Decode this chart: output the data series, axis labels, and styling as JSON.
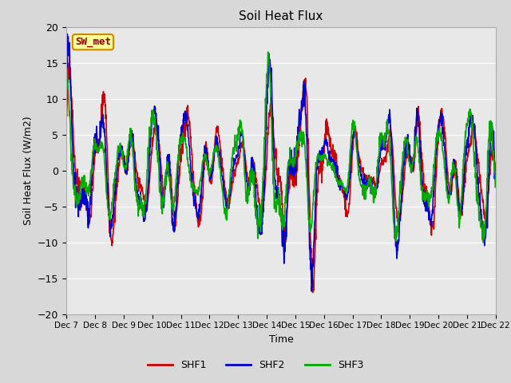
{
  "title": "Soil Heat Flux",
  "ylabel": "Soil Heat Flux (W/m2)",
  "xlabel": "Time",
  "annotation": "SW_met",
  "ylim": [
    -20,
    20
  ],
  "yticks": [
    -20,
    -15,
    -10,
    -5,
    0,
    5,
    10,
    15,
    20
  ],
  "xlabels": [
    "Dec 7",
    "Dec 8",
    "Dec 9",
    "Dec 10",
    "Dec 11",
    "Dec 12",
    "Dec 13",
    "Dec 14",
    "Dec 15",
    "Dec 16",
    "Dec 17",
    "Dec 18",
    "Dec 19",
    "Dec 20",
    "Dec 21",
    "Dec 22"
  ],
  "series_colors": {
    "SHF1": "#cc0000",
    "SHF2": "#0000cc",
    "SHF3": "#00aa00"
  },
  "bg_color": "#e8e8e8",
  "fig_bg_color": "#d8d8d8",
  "linewidth": 1.2,
  "legend_entries": [
    "SHF1",
    "SHF2",
    "SHF3"
  ]
}
